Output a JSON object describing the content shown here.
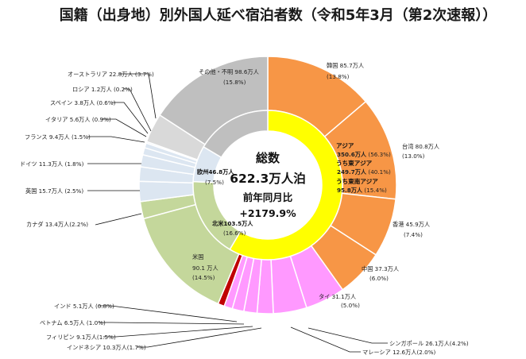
{
  "chart_data": {
    "type": "pie",
    "title": "国籍（出身地）別外国人延べ宿泊者数（令和5年3月（第2次速報））",
    "center": {
      "total_label": "総数",
      "total_value": "622.3万人泊",
      "yoy_label": "前年同月比",
      "yoy_value": "+2179.9%"
    },
    "inner_ring": [
      {
        "name": "アジア",
        "value": 350.6,
        "pct": 56.3,
        "color": "#ffff00"
      },
      {
        "name": "北米",
        "value": 103.5,
        "pct": 16.6,
        "color": "#c4d79b"
      },
      {
        "name": "欧州",
        "value": 46.8,
        "pct": 7.5,
        "color": "#dce6f1"
      },
      {
        "name": "その他・不明",
        "value": 98.6,
        "pct": 15.8,
        "color": "#bfbfbf"
      }
    ],
    "outer_ring": [
      {
        "name": "韓国",
        "value": 85.7,
        "pct": 13.8,
        "color": "#f79646"
      },
      {
        "name": "台湾",
        "value": 80.8,
        "pct": 13.0,
        "color": "#f79646"
      },
      {
        "name": "香港",
        "value": 45.9,
        "pct": 7.4,
        "color": "#f79646"
      },
      {
        "name": "中国",
        "value": 37.3,
        "pct": 6.0,
        "color": "#f79646"
      },
      {
        "name": "タイ",
        "value": 31.1,
        "pct": 5.0,
        "color": "#ff99ff"
      },
      {
        "name": "シンガポール",
        "value": 26.1,
        "pct": 4.2,
        "color": "#ff99ff"
      },
      {
        "name": "マレーシア",
        "value": 12.6,
        "pct": 2.0,
        "color": "#ff99ff"
      },
      {
        "name": "インドネシア",
        "value": 10.3,
        "pct": 1.7,
        "color": "#ff99ff"
      },
      {
        "name": "フィリピン",
        "value": 9.1,
        "pct": 1.5,
        "color": "#ff99ff"
      },
      {
        "name": "ベトナム",
        "value": 6.5,
        "pct": 1.0,
        "color": "#ff99ff"
      },
      {
        "name": "インド",
        "value": 5.1,
        "pct": 0.8,
        "color": "#c00000"
      },
      {
        "name": "米国",
        "value": 90.1,
        "pct": 14.5,
        "color": "#c4d79b"
      },
      {
        "name": "カナダ",
        "value": 13.4,
        "pct": 2.2,
        "color": "#c4d79b"
      },
      {
        "name": "英国",
        "value": 15.7,
        "pct": 2.5,
        "color": "#dce6f1"
      },
      {
        "name": "ドイツ",
        "value": 11.3,
        "pct": 1.8,
        "color": "#dce6f1"
      },
      {
        "name": "フランス",
        "value": 9.4,
        "pct": 1.5,
        "color": "#dce6f1"
      },
      {
        "name": "イタリア",
        "value": 5.6,
        "pct": 0.9,
        "color": "#dce6f1"
      },
      {
        "name": "スペイン",
        "value": 3.8,
        "pct": 0.6,
        "color": "#dce6f1"
      },
      {
        "name": "ロシア",
        "value": 1.2,
        "pct": 0.2,
        "color": "#dce6f1"
      },
      {
        "name": "オーストラリア",
        "value": 22.8,
        "pct": 3.7,
        "color": "#d9d9d9"
      },
      {
        "name": "その他・不明",
        "value": 98.6,
        "pct": 15.8,
        "color": "#bfbfbf"
      }
    ],
    "labels": {
      "korea": [
        "韓国 85.7万人",
        "(13.8%)"
      ],
      "taiwan": [
        "台湾 80.8万人",
        "(13.0%)"
      ],
      "hongkong": [
        "香港 45.9万人",
        "(7.4%)"
      ],
      "china": [
        "中国 37.3万人",
        "(6.0%)"
      ],
      "thai": [
        "タイ 31.1万人",
        "(5.0%)"
      ],
      "singapore": "シンガポール 26.1万人(4.2%)",
      "malaysia": "マレーシア 12.6万人(2.0%)",
      "indonesia": "インドネシア 10.3万人(1.7%)",
      "philippines": "フィリピン 9.1万人(1.5%)",
      "vietnam": "ベトナム 6.5万人 (1.0%)",
      "india": "インド 5.1万人 (0.8%)",
      "usa": [
        "米国",
        "90.1 万人",
        "(14.5%)"
      ],
      "canada": "カナダ 13.4万人(2.2%)",
      "uk": "英国 15.7万人 (2.5%)",
      "germany": "ドイツ 11.3万人 (1.8%)",
      "france": "フランス 9.4万人 (1.5%)",
      "italy": "イタリア 5.6万人 (0.9%)",
      "spain": "スペイン 3.8万人 (0.6%)",
      "russia": "ロシア 1.2万人 (0.2%)",
      "australia": "オーストラリア 22.8万人 (3.7%)",
      "other": [
        "その他・不明 98.6万人",
        "(15.8%)"
      ],
      "europe": [
        "欧州46.8万人",
        "(7.5%)"
      ],
      "namerica": [
        "北米103.5万人",
        "(16.6%)"
      ],
      "asia": [
        {
          "name": "アジア",
          "value": "350.6万人",
          "pct": "(56.3%)"
        },
        {
          "name": "うち東アジア",
          "value": "249.7万人",
          "pct": "(40.1%)"
        },
        {
          "name": "うち東南アジア",
          "value": "95.8万人",
          "pct": "(15.4%)"
        }
      ]
    }
  }
}
